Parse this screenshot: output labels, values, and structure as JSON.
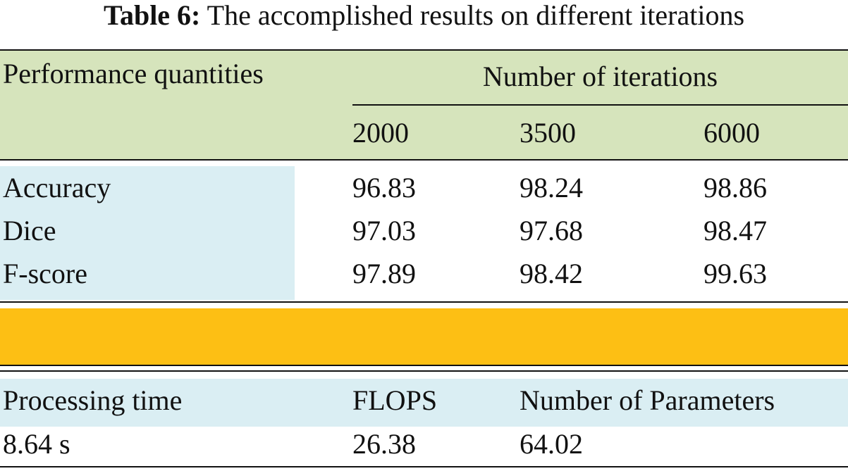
{
  "table": {
    "caption_label": "Table 6:",
    "caption_text": "The accomplished results on different iterations",
    "header": {
      "row_label": "Performance quantities",
      "group_label": "Number of iterations",
      "columns": [
        "2000",
        "3500",
        "6000"
      ]
    },
    "rows": [
      {
        "label": "Accuracy",
        "values": [
          "96.83",
          "98.24",
          "98.86"
        ]
      },
      {
        "label": "Dice",
        "values": [
          "97.03",
          "97.68",
          "98.47"
        ]
      },
      {
        "label": "F-score",
        "values": [
          "97.89",
          "98.42",
          "99.63"
        ]
      }
    ],
    "bottom": {
      "headers": [
        "Processing time",
        "FLOPS",
        "Number of Parameters"
      ],
      "values": [
        "8.64 s",
        "26.38",
        "64.02"
      ]
    },
    "colors": {
      "header_band": "#d6e4bc",
      "label_band": "#daeef3",
      "separator_band": "#fdbf14"
    }
  }
}
